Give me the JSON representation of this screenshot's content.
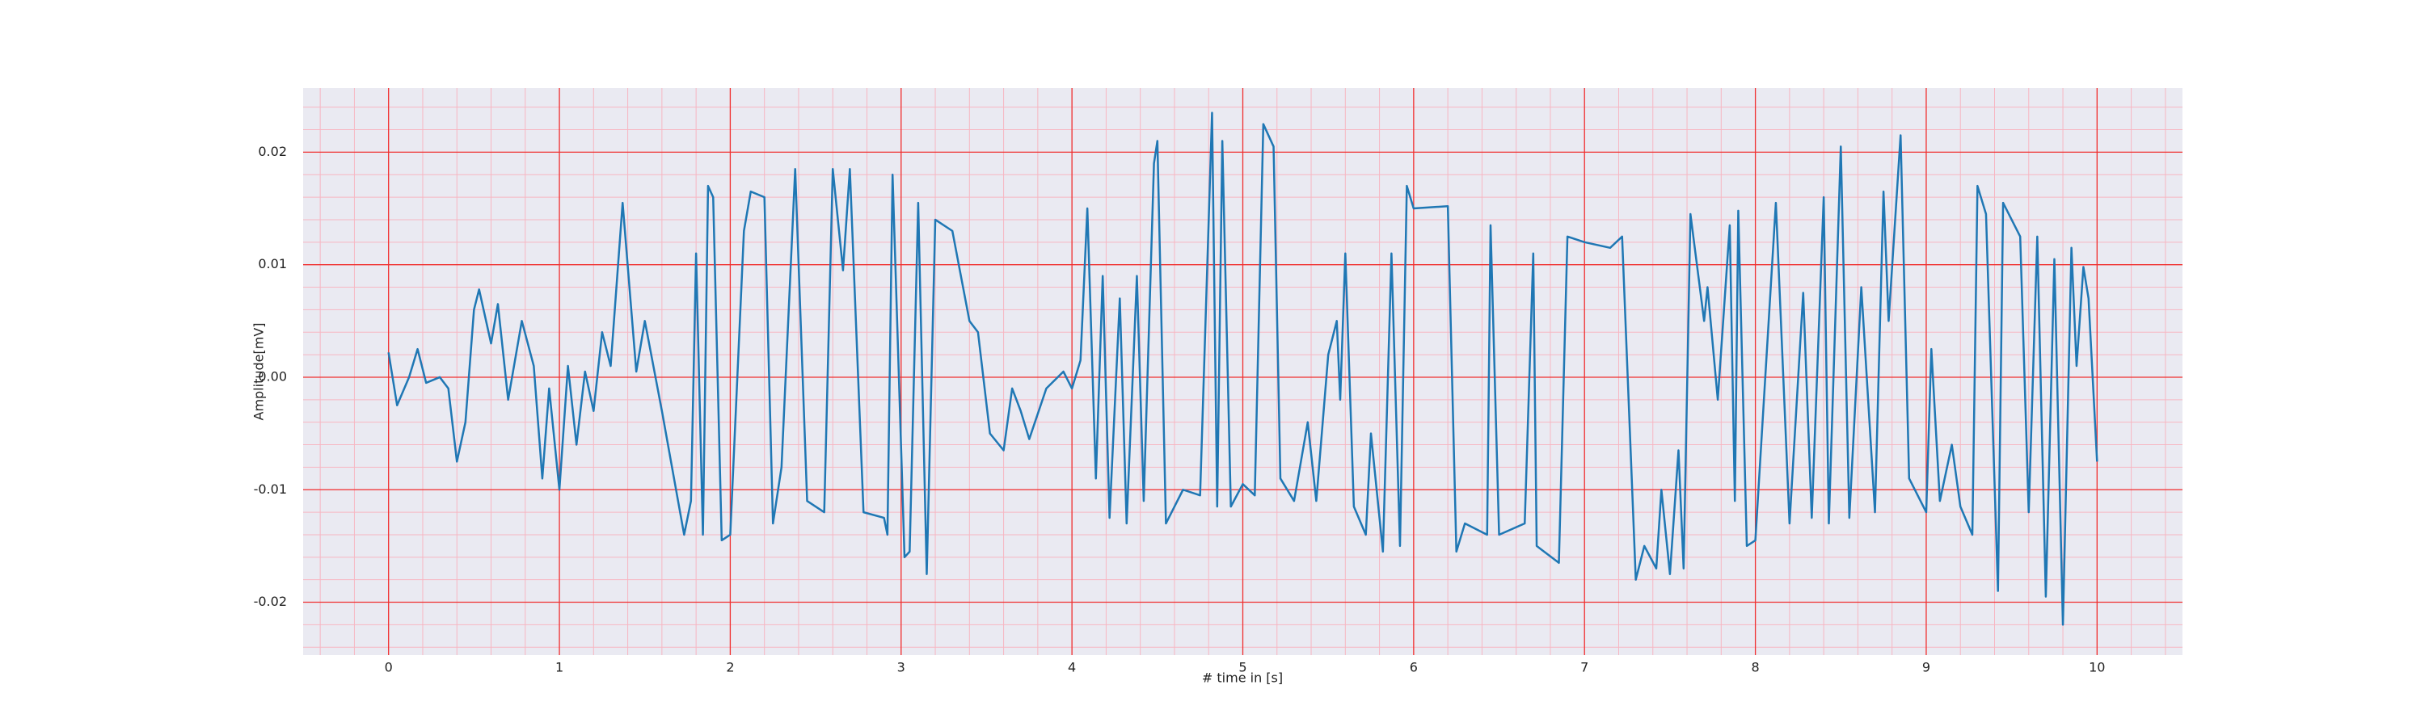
{
  "chart_data": {
    "type": "line",
    "xlabel": "# time in [s]",
    "ylabel": "Amplitude[mV]",
    "xlim": [
      -0.5,
      10.5
    ],
    "ylim": [
      -0.0247,
      0.0257
    ],
    "xticks": [
      0,
      1,
      2,
      3,
      4,
      5,
      6,
      7,
      8,
      9,
      10
    ],
    "yticks": [
      -0.02,
      -0.01,
      {
        "value": 0,
        "label": "0.00"
      },
      0.01,
      0.02
    ],
    "grid": true,
    "minor_grid": true,
    "x": [
      0,
      0.05,
      0.12,
      0.17,
      0.22,
      0.3,
      0.35,
      0.4,
      0.45,
      0.5,
      0.53,
      0.6,
      0.64,
      0.7,
      0.78,
      0.85,
      0.9,
      0.94,
      1.0,
      1.05,
      1.1,
      1.15,
      1.2,
      1.25,
      1.3,
      1.37,
      1.45,
      1.5,
      1.6,
      1.73,
      1.77,
      1.8,
      1.84,
      1.87,
      1.9,
      1.95,
      2.0,
      2.08,
      2.12,
      2.2,
      2.25,
      2.3,
      2.38,
      2.45,
      2.55,
      2.6,
      2.66,
      2.7,
      2.78,
      2.9,
      2.92,
      2.95,
      3.02,
      3.05,
      3.1,
      3.15,
      3.2,
      3.3,
      3.4,
      3.45,
      3.52,
      3.6,
      3.65,
      3.7,
      3.75,
      3.85,
      3.95,
      4.0,
      4.05,
      4.09,
      4.14,
      4.18,
      4.22,
      4.28,
      4.32,
      4.38,
      4.42,
      4.48,
      4.5,
      4.55,
      4.65,
      4.75,
      4.82,
      4.85,
      4.88,
      4.93,
      5.0,
      5.07,
      5.12,
      5.18,
      5.22,
      5.3,
      5.38,
      5.43,
      5.5,
      5.55,
      5.57,
      5.6,
      5.65,
      5.72,
      5.75,
      5.82,
      5.87,
      5.92,
      5.96,
      6.0,
      6.2,
      6.25,
      6.3,
      6.43,
      6.45,
      6.5,
      6.65,
      6.7,
      6.72,
      6.85,
      6.9,
      7.0,
      7.15,
      7.22,
      7.3,
      7.35,
      7.42,
      7.45,
      7.5,
      7.55,
      7.58,
      7.62,
      7.7,
      7.72,
      7.78,
      7.85,
      7.88,
      7.9,
      7.95,
      8.0,
      8.12,
      8.2,
      8.28,
      8.33,
      8.4,
      8.43,
      8.5,
      8.55,
      8.62,
      8.7,
      8.75,
      8.78,
      8.85,
      8.9,
      9.0,
      9.03,
      9.08,
      9.15,
      9.2,
      9.27,
      9.3,
      9.35,
      9.42,
      9.45,
      9.55,
      9.6,
      9.65,
      9.7,
      9.75,
      9.8,
      9.85,
      9.88,
      9.92,
      9.95,
      10.0
    ],
    "series": [
      {
        "color": "#1f77b4",
        "values": [
          0.0022,
          -0.0025,
          0.0,
          0.0025,
          -0.0005,
          0.0,
          -0.001,
          -0.0075,
          -0.004,
          0.006,
          0.0078,
          0.003,
          0.0065,
          -0.002,
          0.005,
          0.001,
          -0.009,
          -0.001,
          -0.01,
          0.001,
          -0.006,
          0.0005,
          -0.003,
          0.004,
          0.001,
          0.0155,
          0.0005,
          0.005,
          -0.003,
          -0.014,
          -0.011,
          0.011,
          -0.014,
          0.017,
          0.016,
          -0.0145,
          -0.014,
          0.013,
          0.0165,
          0.016,
          -0.013,
          -0.008,
          0.0185,
          -0.011,
          -0.012,
          0.0185,
          0.0095,
          0.0185,
          -0.012,
          -0.0125,
          -0.014,
          0.018,
          -0.016,
          -0.0155,
          0.0155,
          -0.0175,
          0.014,
          0.013,
          0.005,
          0.004,
          -0.005,
          -0.0065,
          -0.001,
          -0.003,
          -0.0055,
          -0.001,
          0.0005,
          -0.001,
          0.0015,
          0.015,
          -0.009,
          0.009,
          -0.0125,
          0.007,
          -0.013,
          0.009,
          -0.011,
          0.019,
          0.021,
          -0.013,
          -0.01,
          -0.0105,
          0.0235,
          -0.0115,
          0.021,
          -0.0115,
          -0.0095,
          -0.0105,
          0.0225,
          0.0205,
          -0.009,
          -0.011,
          -0.004,
          -0.011,
          0.002,
          0.005,
          -0.002,
          0.011,
          -0.0115,
          -0.014,
          -0.005,
          -0.0155,
          0.011,
          -0.015,
          0.017,
          0.015,
          0.0152,
          -0.0155,
          -0.013,
          -0.014,
          0.0135,
          -0.014,
          -0.013,
          0.011,
          -0.015,
          -0.0165,
          0.0125,
          0.012,
          0.0115,
          0.0125,
          -0.018,
          -0.015,
          -0.017,
          -0.01,
          -0.0175,
          -0.0065,
          -0.017,
          0.0145,
          0.005,
          0.008,
          -0.002,
          0.0135,
          -0.011,
          0.0148,
          -0.015,
          -0.0145,
          0.0155,
          -0.013,
          0.0075,
          -0.0125,
          0.016,
          -0.013,
          0.0205,
          -0.0125,
          0.008,
          -0.012,
          0.0165,
          0.005,
          0.0215,
          -0.009,
          -0.012,
          0.0025,
          -0.011,
          -0.006,
          -0.0115,
          -0.014,
          0.017,
          0.0145,
          -0.019,
          0.0155,
          0.0125,
          -0.012,
          0.0125,
          -0.0195,
          0.0105,
          -0.022,
          0.0115,
          0.001,
          0.0098,
          0.007,
          -0.0075
        ]
      }
    ]
  }
}
